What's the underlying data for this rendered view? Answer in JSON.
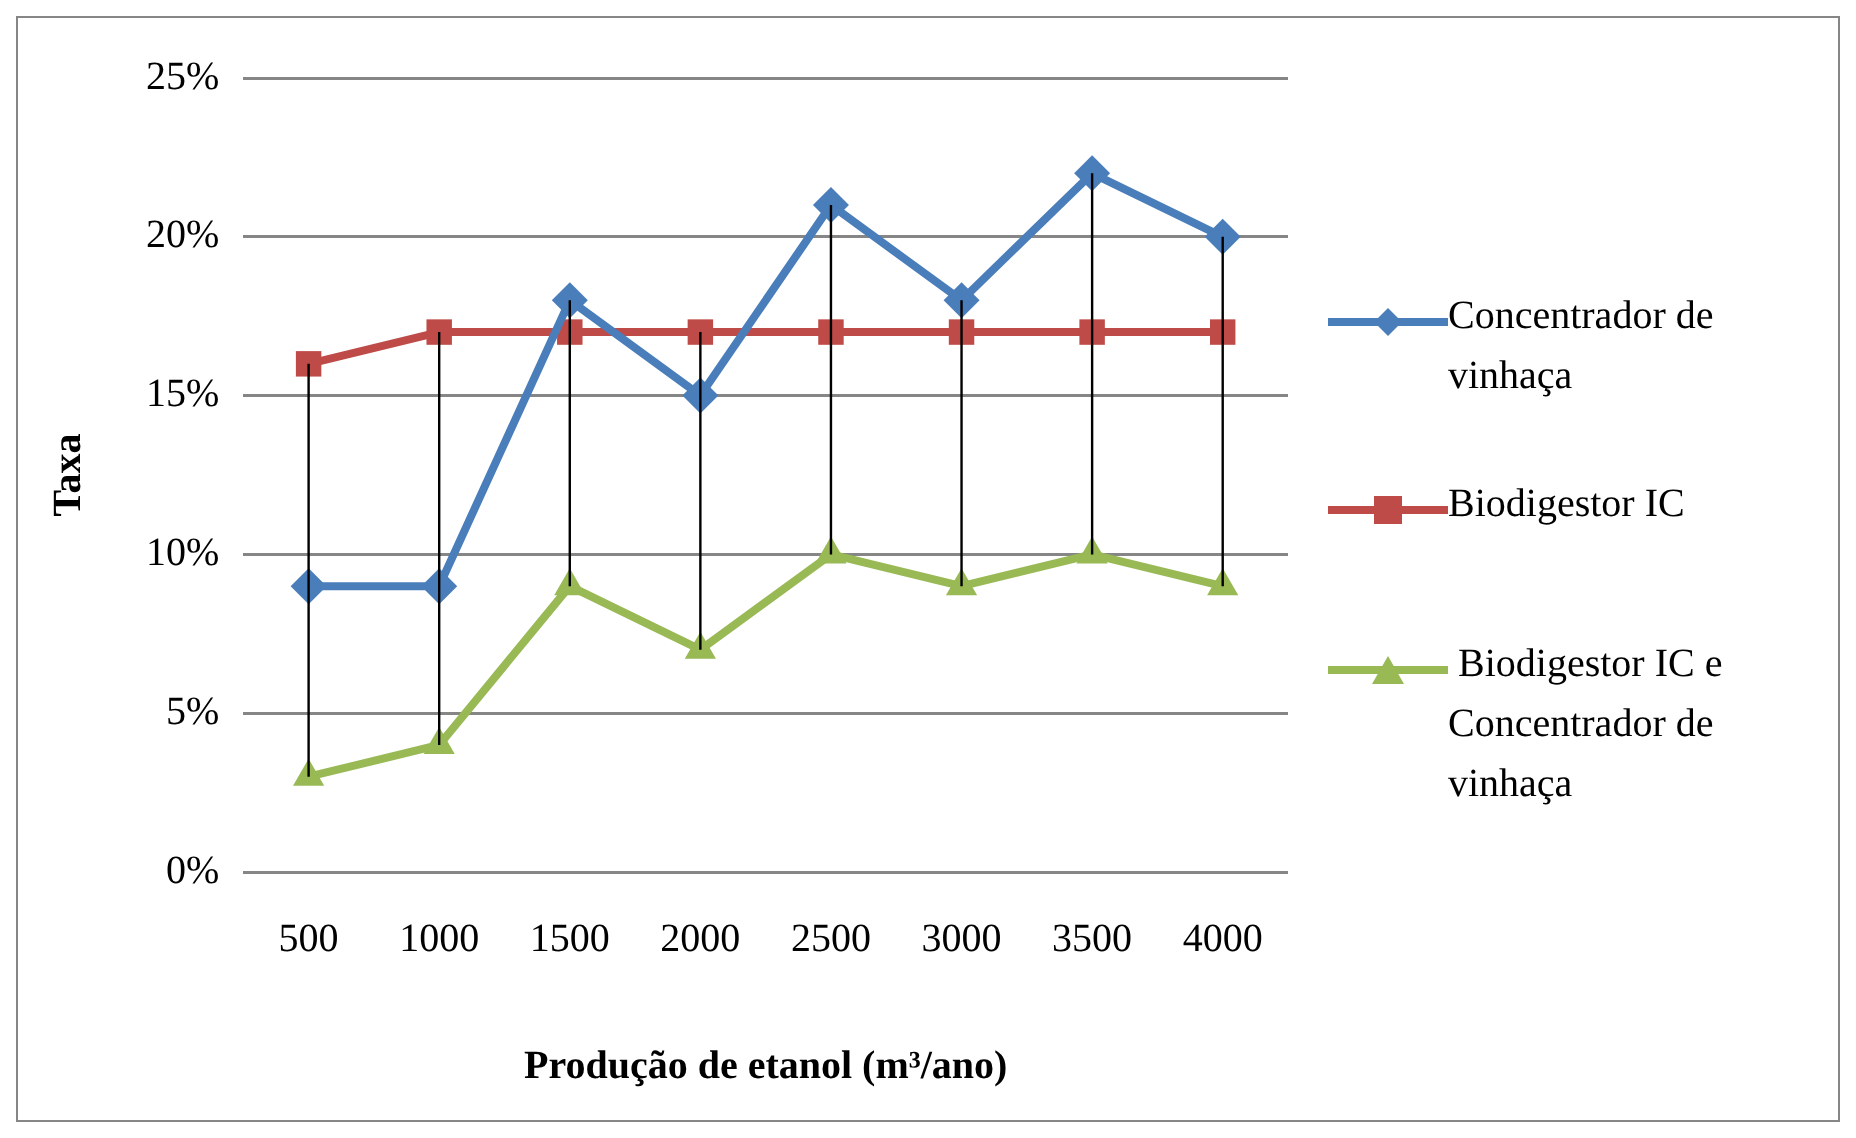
{
  "chart_data": {
    "type": "line",
    "xlabel": "Produção de etanol (m³/ano)",
    "ylabel": "Taxa",
    "categories": [
      "500",
      "1000",
      "1500",
      "2000",
      "2500",
      "3000",
      "3500",
      "4000"
    ],
    "series": [
      {
        "name": "Concentrador de vinhaça",
        "color": "#4a7ebb",
        "marker": "diamond",
        "values": [
          9,
          9,
          18,
          15,
          21,
          18,
          22,
          20
        ]
      },
      {
        "name": "Biodigestor IC",
        "color": "#be4b48",
        "marker": "square",
        "values": [
          16,
          17,
          17,
          17,
          17,
          17,
          17,
          17
        ],
        "errors": [
          [
            3,
            16
          ],
          [
            4,
            17
          ],
          [
            9,
            18
          ],
          [
            7,
            17
          ],
          [
            10,
            21
          ],
          [
            9,
            18
          ],
          [
            10,
            22
          ],
          [
            9,
            20
          ]
        ]
      },
      {
        "name": " Biodigestor IC e Concentrador de vinhaça",
        "color": "#98b954",
        "marker": "triangle",
        "values": [
          3,
          4,
          9,
          7,
          10,
          9,
          10,
          9
        ]
      }
    ],
    "ylim": [
      0,
      25
    ],
    "yticks": [
      {
        "value": 0,
        "label": "0%"
      },
      {
        "value": 5,
        "label": "5%"
      },
      {
        "value": 10,
        "label": "10%"
      },
      {
        "value": 15,
        "label": "15%"
      },
      {
        "value": 20,
        "label": "20%"
      },
      {
        "value": 25,
        "label": "25%"
      }
    ],
    "grid": "y",
    "legend": "right",
    "line_style": "solid"
  }
}
